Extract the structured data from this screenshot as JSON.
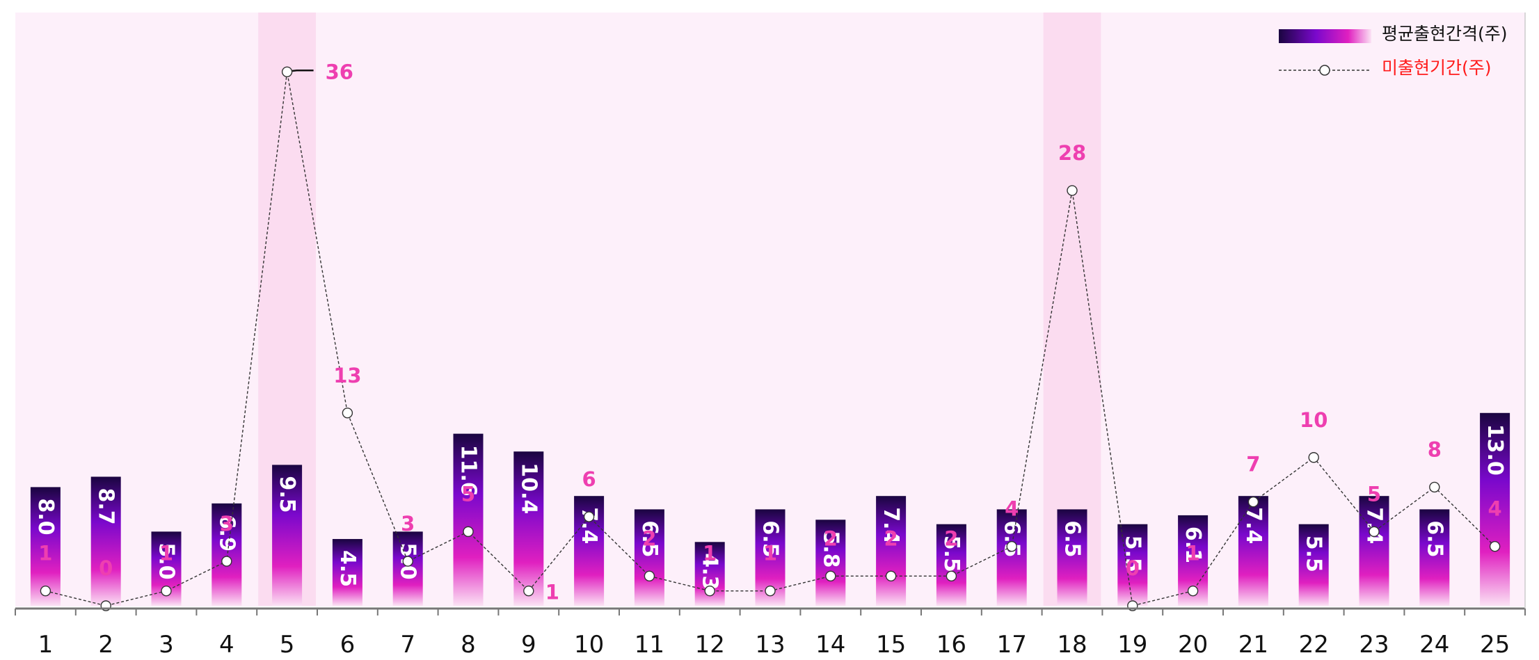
{
  "chart_data": {
    "type": "bar",
    "categories": [
      "1",
      "2",
      "3",
      "4",
      "5",
      "6",
      "7",
      "8",
      "9",
      "10",
      "11",
      "12",
      "13",
      "14",
      "15",
      "16",
      "17",
      "18",
      "19",
      "20",
      "21",
      "22",
      "23",
      "24",
      "25"
    ],
    "series": [
      {
        "name": "평균출현간격(주)",
        "type": "bar",
        "values": [
          8.0,
          8.7,
          5.0,
          6.9,
          9.5,
          4.5,
          5.0,
          11.6,
          10.4,
          7.4,
          6.5,
          4.3,
          6.5,
          5.8,
          7.4,
          5.5,
          6.5,
          6.5,
          5.5,
          6.1,
          7.4,
          5.5,
          7.4,
          6.5,
          13.0
        ],
        "labels": [
          "8.0",
          "8.7",
          "5.0",
          "6.9",
          "9.5",
          "4.5",
          "5.0",
          "11.6",
          "10.4",
          "7.4",
          "6.5",
          "4.3",
          "6.5",
          "5.8",
          "7.4",
          "5.5",
          "6.5",
          "6.5",
          "5.5",
          "6.1",
          "7.4",
          "5.5",
          "7.4",
          "6.5",
          "13.0"
        ]
      },
      {
        "name": "미출현기간(주)",
        "type": "line",
        "values": [
          1,
          0,
          1,
          3,
          36,
          13,
          3,
          5,
          1,
          6,
          2,
          1,
          1,
          2,
          2,
          2,
          4,
          28,
          0,
          1,
          7,
          10,
          5,
          8,
          4
        ],
        "labels": [
          "1",
          "0",
          "1",
          "3",
          "36",
          "13",
          "3",
          "5",
          "1",
          "6",
          "2",
          "1",
          "1",
          "2",
          "2",
          "2",
          "4",
          "28",
          "0",
          "1",
          "7",
          "10",
          "5",
          "8",
          "4"
        ]
      }
    ],
    "highlighted_categories": [
      "5",
      "18"
    ],
    "bar_ylim": [
      0,
      40
    ],
    "line_ylim": [
      0,
      40
    ],
    "legend_position": "top-right",
    "colors": {
      "background": "#fdf0fa",
      "highlight": "#fbdcf0",
      "bar_top": "#1a0540",
      "bar_mid": "#7a08cc",
      "bar_low": "#e020c0",
      "bar_bottom": "#fbe2f4",
      "line": "#333333",
      "gap_label": "#ee3fb0",
      "legend_line_label": "#ff1a1a",
      "axis": "#777777"
    }
  },
  "legend": {
    "bar_label": "평균출현간격(주)",
    "line_label": "미출현기간(주)"
  }
}
